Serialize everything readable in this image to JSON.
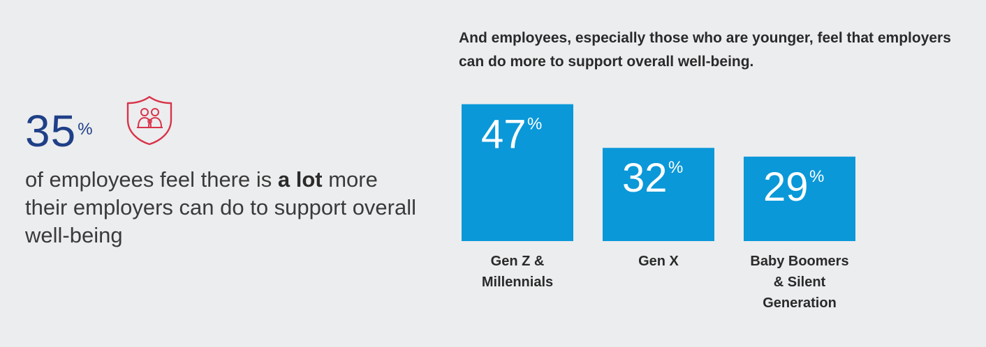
{
  "left_stat": {
    "value": "35",
    "unit": "%",
    "icon": "family-shield-icon",
    "desc_pre": "of employees feel there is ",
    "desc_bold": "a lot",
    "desc_post": " more their employers can do to support overall well-being"
  },
  "colors": {
    "bar": "#0a98d8",
    "stat": "#1f3f87",
    "icon": "#d8344a",
    "background": "#ecedef"
  },
  "chart_data": {
    "type": "bar",
    "title": "And employees, especially those who are younger, feel that employers can do more to support overall well-being.",
    "categories": [
      "Gen Z & Millennials",
      "Gen X",
      "Baby Boomers & Silent Generation"
    ],
    "values": [
      47,
      32,
      29
    ],
    "unit": "%",
    "value_labels": [
      "47",
      "32",
      "29"
    ],
    "xlabel": "",
    "ylabel": "",
    "grid": false,
    "legend": "none"
  }
}
